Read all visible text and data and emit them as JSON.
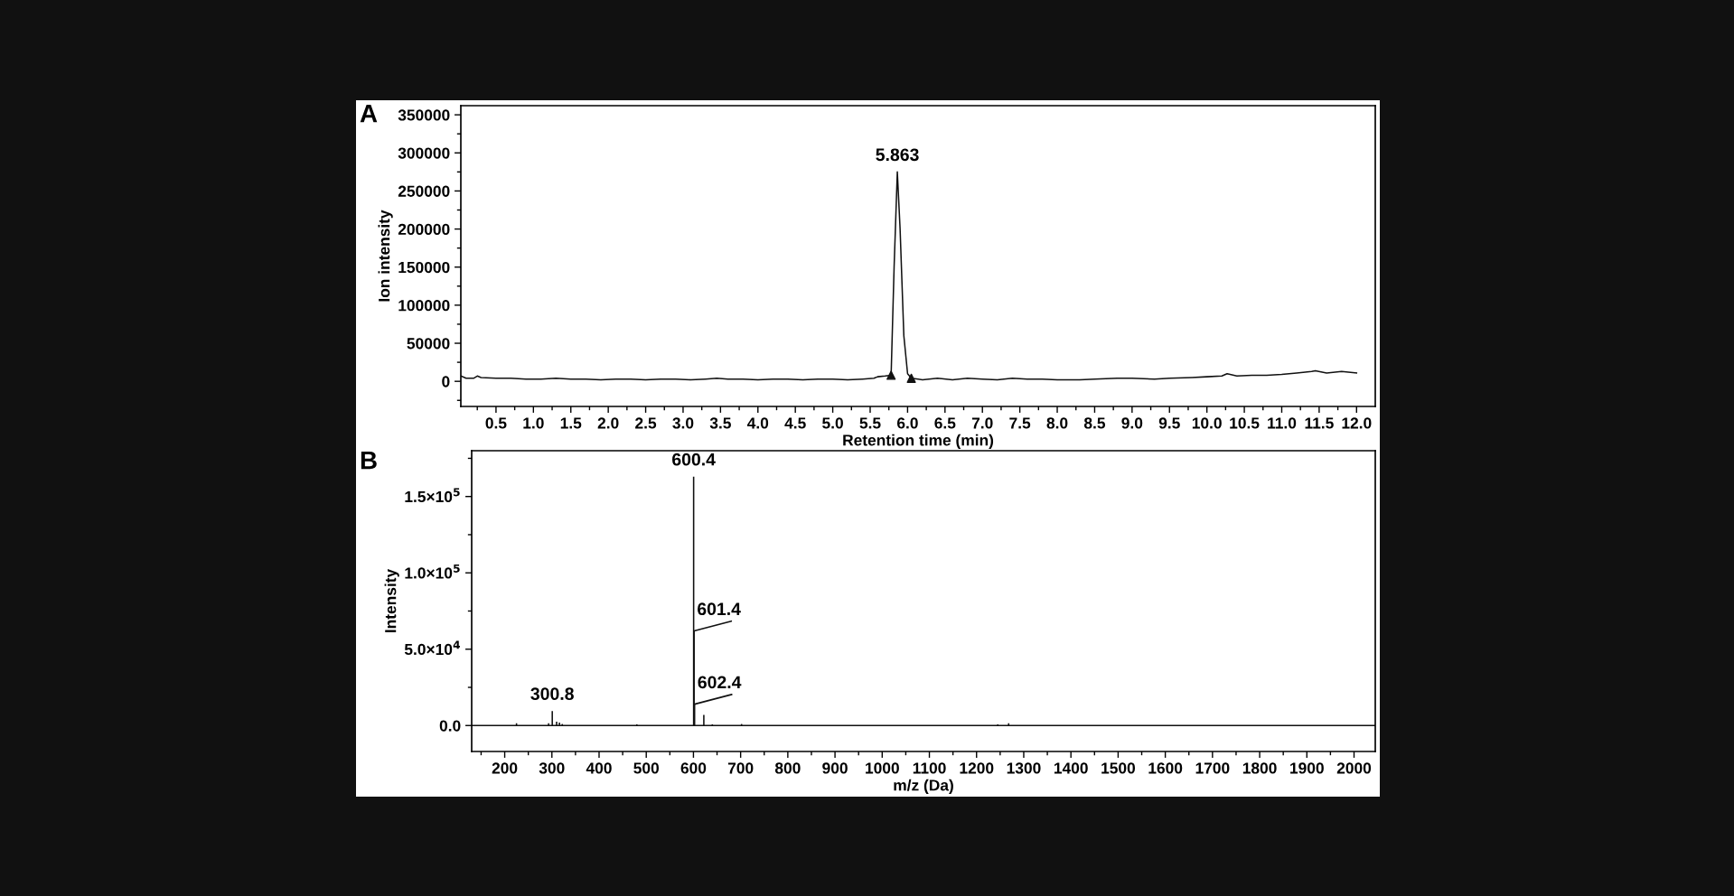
{
  "chart_data": [
    {
      "type": "line",
      "xlabel": "Retention time (min)",
      "ylabel": "Ion intensity",
      "annotations": [
        "A",
        {
          "text": "5.863",
          "x": 5.863,
          "y": 275000
        }
      ],
      "xlim": [
        0.03,
        12.25
      ],
      "ylim": [
        -33000,
        362000
      ],
      "xticks": [
        {
          "value": 0.25,
          "label": null
        },
        0.5,
        {
          "value": 0.75,
          "label": null
        },
        {
          "value": 1,
          "label": "1.0"
        },
        {
          "value": 1.25,
          "label": null
        },
        1.5,
        {
          "value": 1.75,
          "label": null
        },
        {
          "value": 2,
          "label": "2.0"
        },
        {
          "value": 2.25,
          "label": null
        },
        2.5,
        {
          "value": 2.75,
          "label": null
        },
        {
          "value": 3,
          "label": "3.0"
        },
        {
          "value": 3.25,
          "label": null
        },
        3.5,
        {
          "value": 3.75,
          "label": null
        },
        {
          "value": 4,
          "label": "4.0"
        },
        {
          "value": 4.25,
          "label": null
        },
        4.5,
        {
          "value": 4.75,
          "label": null
        },
        {
          "value": 5,
          "label": "5.0"
        },
        {
          "value": 5.25,
          "label": null
        },
        5.5,
        {
          "value": 5.75,
          "label": null
        },
        {
          "value": 6,
          "label": "6.0"
        },
        {
          "value": 6.25,
          "label": null
        },
        6.5,
        {
          "value": 6.75,
          "label": null
        },
        {
          "value": 7,
          "label": "7.0"
        },
        {
          "value": 7.25,
          "label": null
        },
        7.5,
        {
          "value": 7.75,
          "label": null
        },
        {
          "value": 8,
          "label": "8.0"
        },
        {
          "value": 8.25,
          "label": null
        },
        8.5,
        {
          "value": 8.75,
          "label": null
        },
        {
          "value": 9,
          "label": "9.0"
        },
        {
          "value": 9.25,
          "label": null
        },
        9.5,
        {
          "value": 9.75,
          "label": null
        },
        {
          "value": 10,
          "label": "10.0"
        },
        {
          "value": 10.25,
          "label": null
        },
        10.5,
        {
          "value": 10.75,
          "label": null
        },
        {
          "value": 11,
          "label": "11.0"
        },
        {
          "value": 11.25,
          "label": null
        },
        11.5,
        {
          "value": 11.75,
          "label": null
        },
        {
          "value": 12,
          "label": "12.0"
        }
      ],
      "yticks": [
        {
          "value": -25000,
          "label": null
        },
        0,
        {
          "value": 25000,
          "label": null
        },
        50000,
        {
          "value": 75000,
          "label": null
        },
        100000,
        {
          "value": 125000,
          "label": null
        },
        150000,
        {
          "value": 175000,
          "label": null
        },
        200000,
        {
          "value": 225000,
          "label": null
        },
        250000,
        {
          "value": 275000,
          "label": null
        },
        300000,
        {
          "value": 325000,
          "label": null
        },
        350000
      ],
      "grid": false,
      "legend": false,
      "series": [
        {
          "color": "#111111",
          "x": [
            0.03,
            0.1,
            0.2,
            0.25,
            0.3,
            0.5,
            0.7,
            0.9,
            1.1,
            1.3,
            1.5,
            1.7,
            1.9,
            2.1,
            2.3,
            2.5,
            2.7,
            2.9,
            3.1,
            3.3,
            3.45,
            3.6,
            3.8,
            4.0,
            4.2,
            4.4,
            4.6,
            4.8,
            5.0,
            5.2,
            5.4,
            5.55,
            5.6,
            5.7,
            5.78,
            5.82,
            5.863,
            5.9,
            5.95,
            6.0,
            6.05,
            6.2,
            6.4,
            6.6,
            6.8,
            7.0,
            7.2,
            7.4,
            7.6,
            7.8,
            8.0,
            8.3,
            8.5,
            8.8,
            9.0,
            9.3,
            9.5,
            9.8,
            10.0,
            10.2,
            10.27,
            10.4,
            10.6,
            10.8,
            11.0,
            11.2,
            11.4,
            11.45,
            11.6,
            11.8,
            12.0
          ],
          "values": [
            7000,
            4000,
            4000,
            7000,
            5000,
            4000,
            4000,
            3000,
            3000,
            4000,
            3000,
            3000,
            2000,
            3000,
            3000,
            2000,
            3000,
            3000,
            2000,
            3000,
            4000,
            3000,
            3000,
            2000,
            3000,
            3000,
            2000,
            3000,
            3000,
            2000,
            3000,
            4000,
            6000,
            7000,
            8000,
            150000,
            275000,
            200000,
            60000,
            10000,
            4000,
            2000,
            4000,
            2000,
            4000,
            3000,
            2000,
            4000,
            3000,
            3000,
            2000,
            2000,
            3000,
            4000,
            4000,
            3000,
            4000,
            5000,
            6000,
            7000,
            10000,
            7000,
            8000,
            8000,
            9000,
            11000,
            13000,
            14000,
            11000,
            13000,
            11000
          ]
        },
        {
          "type": "scatter",
          "color": "#111111",
          "x": [
            5.78,
            6.05
          ],
          "values": [
            8000,
            4000
          ],
          "marker": "triangle"
        }
      ]
    },
    {
      "type": "bar",
      "xlabel": "m/z (Da)",
      "ylabel": "Intensity",
      "annotations": [
        "B",
        {
          "text": "600.4",
          "x": 600.4,
          "y": 163000
        },
        {
          "text": "601.4",
          "x": 601.4,
          "y": 62000
        },
        {
          "text": "602.4",
          "x": 602.4,
          "y": 14000
        },
        {
          "text": "300.8",
          "x": 300.8,
          "y": 9500
        }
      ],
      "xlim": [
        130,
        2045
      ],
      "ylim": [
        -17000,
        180000
      ],
      "xticks": [
        {
          "value": 150,
          "label": null
        },
        200,
        {
          "value": 250,
          "label": null
        },
        300,
        {
          "value": 350,
          "label": null
        },
        400,
        {
          "value": 450,
          "label": null
        },
        500,
        {
          "value": 550,
          "label": null
        },
        600,
        {
          "value": 650,
          "label": null
        },
        700,
        {
          "value": 750,
          "label": null
        },
        800,
        {
          "value": 850,
          "label": null
        },
        900,
        {
          "value": 950,
          "label": null
        },
        1000,
        {
          "value": 1050,
          "label": null
        },
        1100,
        {
          "value": 1150,
          "label": null
        },
        1200,
        {
          "value": 1250,
          "label": null
        },
        1300,
        {
          "value": 1350,
          "label": null
        },
        1400,
        {
          "value": 1450,
          "label": null
        },
        1500,
        {
          "value": 1550,
          "label": null
        },
        1600,
        {
          "value": 1650,
          "label": null
        },
        1700,
        {
          "value": 1750,
          "label": null
        },
        1800,
        {
          "value": 1850,
          "label": null
        },
        1900,
        {
          "value": 1950,
          "label": null
        },
        2000
      ],
      "yticks": [
        {
          "value": 0,
          "label": "0.0"
        },
        {
          "value": 25000,
          "label": null
        },
        {
          "value": 50000,
          "label": "5.0×10$^{4}$"
        },
        {
          "value": 75000,
          "label": null
        },
        {
          "value": 100000,
          "label": "1.0×10$^{5}$"
        },
        {
          "value": 125000,
          "label": null
        },
        {
          "value": 150000,
          "label": "1.5×10$^{5}$"
        },
        {
          "value": 175000,
          "label": null
        }
      ],
      "grid": false,
      "legend": false,
      "ref_lines": [
        {
          "axis": "y",
          "value": 0,
          "color": "#111111"
        }
      ],
      "series": [
        {
          "color": "#111111",
          "x": [
            225,
            293,
            300.8,
            310,
            316,
            322,
            480,
            600.4,
            601.4,
            602.4,
            622,
            640,
            702,
            1245,
            1268
          ],
          "values": [
            1500,
            1500,
            9500,
            2500,
            2000,
            1000,
            800,
            163000,
            62000,
            14000,
            7000,
            800,
            1000,
            800,
            1500
          ]
        }
      ]
    }
  ]
}
